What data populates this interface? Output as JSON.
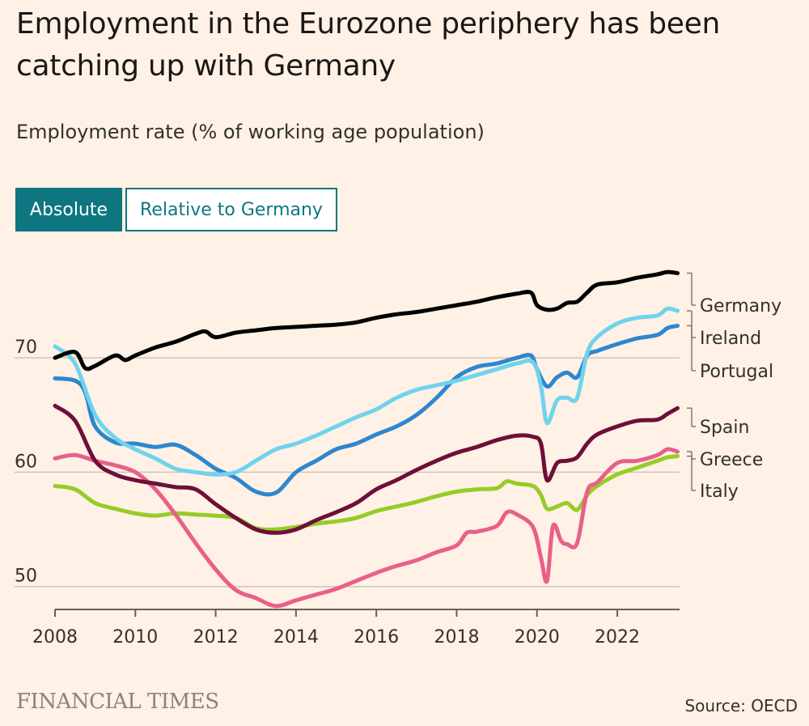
{
  "header": {
    "title": "Employment in the Eurozone periphery has been catching up with Germany",
    "subtitle": "Employment rate (% of working age population)"
  },
  "tabs": [
    {
      "label": "Absolute",
      "active": true
    },
    {
      "label": "Relative to Germany",
      "active": false
    }
  ],
  "footer": {
    "logo": "FINANCIAL TIMES",
    "source": "Source: OECD"
  },
  "chart_data": {
    "type": "line",
    "title": "Employment in the Eurozone periphery has been catching up with Germany",
    "ylabel": "Employment rate (% of working age population)",
    "xlim": [
      2008,
      2023.55
    ],
    "ylim": [
      48,
      78
    ],
    "x_ticks": [
      2008,
      2010,
      2012,
      2014,
      2016,
      2018,
      2020,
      2022
    ],
    "y_ticks": [
      50,
      60,
      70
    ],
    "grid": true,
    "series": [
      {
        "name": "Germany",
        "color": "#000000",
        "x": [
          2008,
          2008.5,
          2008.75,
          2009,
          2009.5,
          2009.75,
          2010,
          2010.5,
          2011,
          2011.5,
          2011.75,
          2012,
          2012.5,
          2013,
          2013.5,
          2014,
          2014.5,
          2015,
          2015.5,
          2016,
          2016.5,
          2017,
          2017.5,
          2018,
          2018.5,
          2019,
          2019.5,
          2019.85,
          2020,
          2020.25,
          2020.5,
          2020.75,
          2021,
          2021.25,
          2021.5,
          2022,
          2022.5,
          2023,
          2023.25,
          2023.5
        ],
        "y": [
          70,
          70.5,
          69.1,
          69.3,
          70.2,
          69.8,
          70.2,
          70.9,
          71.4,
          72.1,
          72.3,
          71.8,
          72.2,
          72.4,
          72.6,
          72.7,
          72.8,
          72.9,
          73.1,
          73.5,
          73.8,
          74,
          74.3,
          74.6,
          74.9,
          75.3,
          75.6,
          75.7,
          74.6,
          74.2,
          74.3,
          74.8,
          74.9,
          75.7,
          76.4,
          76.6,
          77,
          77.3,
          77.5,
          77.4
        ]
      },
      {
        "name": "Ireland",
        "color": "#6fd3ec",
        "x": [
          2008,
          2008.5,
          2009,
          2009.5,
          2010,
          2010.5,
          2011,
          2011.5,
          2012,
          2012.5,
          2013,
          2013.5,
          2014,
          2014.5,
          2015,
          2015.5,
          2016,
          2016.5,
          2017,
          2017.5,
          2018,
          2018.5,
          2019,
          2019.5,
          2019.9,
          2020.1,
          2020.25,
          2020.5,
          2020.75,
          2021,
          2021.25,
          2021.5,
          2022,
          2022.5,
          2023,
          2023.25,
          2023.5
        ],
        "y": [
          71,
          69.5,
          65,
          63,
          62,
          61.2,
          60.3,
          60,
          59.8,
          60,
          61,
          62,
          62.5,
          63.2,
          64,
          64.8,
          65.5,
          66.5,
          67.2,
          67.6,
          68,
          68.5,
          69,
          69.5,
          69.6,
          67.5,
          64.3,
          66.3,
          66.5,
          66.5,
          70.4,
          71.8,
          73,
          73.5,
          73.7,
          74.3,
          74.1
        ]
      },
      {
        "name": "Portugal",
        "color": "#2e86cf",
        "x": [
          2008,
          2008.5,
          2008.75,
          2009,
          2009.5,
          2010,
          2010.5,
          2011,
          2011.5,
          2012,
          2012.5,
          2013,
          2013.5,
          2014,
          2014.5,
          2015,
          2015.5,
          2016,
          2016.5,
          2017,
          2017.5,
          2018,
          2018.5,
          2019,
          2019.5,
          2019.85,
          2020,
          2020.25,
          2020.5,
          2020.75,
          2021,
          2021.25,
          2021.5,
          2022,
          2022.5,
          2023,
          2023.25,
          2023.5
        ],
        "y": [
          68.2,
          68,
          67,
          64,
          62.6,
          62.5,
          62.2,
          62.4,
          61.5,
          60.3,
          59.5,
          58.3,
          58.2,
          60,
          61,
          62,
          62.5,
          63.3,
          64,
          65,
          66.5,
          68.3,
          69.2,
          69.5,
          70,
          70.2,
          69,
          67.5,
          68.3,
          68.7,
          68.3,
          70.2,
          70.6,
          71.2,
          71.7,
          72,
          72.6,
          72.8
        ]
      },
      {
        "name": "Spain",
        "color": "#6e0f3a",
        "x": [
          2008,
          2008.5,
          2009,
          2009.5,
          2010,
          2010.5,
          2011,
          2011.5,
          2012,
          2012.5,
          2013,
          2013.5,
          2014,
          2014.5,
          2015,
          2015.5,
          2016,
          2016.5,
          2017,
          2017.5,
          2018,
          2018.5,
          2019,
          2019.5,
          2019.9,
          2020.1,
          2020.25,
          2020.5,
          2020.75,
          2021,
          2021.25,
          2021.5,
          2022,
          2022.5,
          2023,
          2023.25,
          2023.5
        ],
        "y": [
          65.8,
          64.5,
          61,
          59.8,
          59.3,
          59,
          58.7,
          58.5,
          57.2,
          56,
          55,
          54.7,
          55,
          55.8,
          56.5,
          57.3,
          58.5,
          59.3,
          60.2,
          61,
          61.7,
          62.2,
          62.8,
          63.2,
          63.1,
          62.5,
          59.3,
          60.8,
          61,
          61.3,
          62.5,
          63.3,
          64,
          64.5,
          64.6,
          65.1,
          65.6
        ]
      },
      {
        "name": "Greece",
        "color": "#e8608a",
        "x": [
          2008,
          2008.5,
          2009,
          2009.5,
          2010,
          2010.5,
          2011,
          2011.5,
          2012,
          2012.5,
          2013,
          2013.5,
          2014,
          2014.5,
          2015,
          2015.5,
          2016,
          2016.5,
          2017,
          2017.5,
          2018,
          2018.25,
          2018.5,
          2019,
          2019.25,
          2019.5,
          2019.9,
          2020.1,
          2020.25,
          2020.4,
          2020.6,
          2020.75,
          2021,
          2021.25,
          2021.5,
          2022,
          2022.5,
          2023,
          2023.25,
          2023.5
        ],
        "y": [
          61.2,
          61.5,
          61,
          60.6,
          60,
          58.5,
          56.3,
          53.8,
          51.5,
          49.7,
          49,
          48.3,
          48.8,
          49.3,
          49.8,
          50.5,
          51.2,
          51.8,
          52.3,
          53,
          53.6,
          54.7,
          54.8,
          55.3,
          56.5,
          56.3,
          55.2,
          52.5,
          50.5,
          55.3,
          54,
          53.7,
          53.8,
          58.3,
          59.1,
          60.8,
          61,
          61.5,
          62,
          61.8
        ]
      },
      {
        "name": "Italy",
        "color": "#96cc28",
        "x": [
          2008,
          2008.5,
          2009,
          2009.5,
          2010,
          2010.5,
          2011,
          2011.5,
          2012,
          2012.5,
          2013,
          2013.5,
          2014,
          2014.5,
          2015,
          2015.5,
          2016,
          2016.5,
          2017,
          2017.5,
          2018,
          2018.5,
          2019,
          2019.25,
          2019.5,
          2019.9,
          2020.1,
          2020.25,
          2020.5,
          2020.75,
          2021,
          2021.25,
          2021.5,
          2022,
          2022.5,
          2023,
          2023.25,
          2023.5
        ],
        "y": [
          58.8,
          58.5,
          57.3,
          56.8,
          56.4,
          56.2,
          56.4,
          56.3,
          56.2,
          56,
          55.1,
          55,
          55.2,
          55.5,
          55.7,
          56,
          56.6,
          57,
          57.4,
          57.9,
          58.3,
          58.5,
          58.6,
          59.2,
          59,
          58.8,
          58,
          56.8,
          57,
          57.3,
          56.7,
          58,
          58.8,
          59.8,
          60.4,
          61,
          61.3,
          61.4
        ]
      }
    ],
    "legend": [
      {
        "name": "Germany",
        "label": "Germany"
      },
      {
        "name": "Ireland",
        "label": "Ireland"
      },
      {
        "name": "Portugal",
        "label": "Portugal"
      },
      {
        "name": "Spain",
        "label": "Spain"
      },
      {
        "name": "Greece",
        "label": "Greece"
      },
      {
        "name": "Italy",
        "label": "Italy"
      }
    ]
  }
}
